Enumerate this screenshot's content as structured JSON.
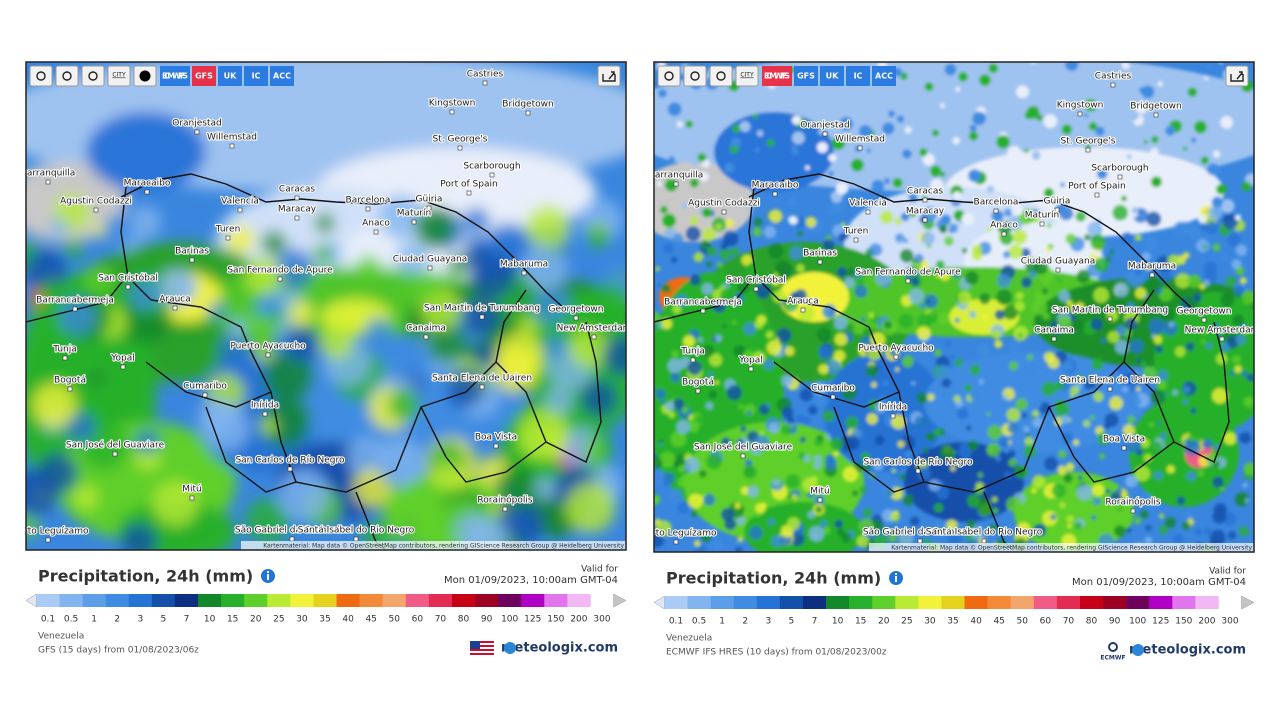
{
  "map_cities": [
    "Castries",
    "Kingstown",
    "Bridgetown",
    "Oranjestad",
    "Willemstad",
    "St. George's",
    "Scarborough",
    "Barranquilla",
    "Maracaibo",
    "Caracas",
    "Port of Spain",
    "Agustin Codazzi",
    "Valencia",
    "Barcelona",
    "Güiria",
    "Maracay",
    "Maturín",
    "Anaco",
    "Turen",
    "Barinas",
    "Ciudad Guayana",
    "Mabaruma",
    "San Fernando de Apure",
    "San Cristóbal",
    "Arauca",
    "Barrancabermeja",
    "San Martin de Turumbang",
    "Georgetown",
    "Canaima",
    "New Amsterdam",
    "Puerto Ayacucho",
    "Tunja",
    "Yopal",
    "Bogotá",
    "Cumaribo",
    "Santa Elena de Uairen",
    "Inírida",
    "Boa Vista",
    "San José del Guaviare",
    "San Carlos de Río Negro",
    "Mitú",
    "Rorainópolis",
    "São Gabriel da Cachoeira",
    "Santa Isabel do Rio Negro",
    "Puerto Leguízamo"
  ],
  "attribution": "Kartenmaterial: Map data © OpenStreetMap contributors, rendering GIScience Research Group @ Heidelberg University",
  "toolbar": {
    "city": "CITY",
    "models": [
      "ECMWF IFS",
      "GFS",
      "UK",
      "IC",
      "ACC"
    ]
  },
  "legend": {
    "labels": [
      0.1,
      0.5,
      1,
      2,
      3,
      5,
      7,
      10,
      15,
      20,
      25,
      30,
      35,
      40,
      45,
      50,
      60,
      70,
      80,
      90,
      100,
      125,
      150,
      200,
      300
    ],
    "colors": [
      "#dfe7f4",
      "#a9cbf4",
      "#82b5f0",
      "#5c9fe8",
      "#3f8ce2",
      "#2573d4",
      "#1350aa",
      "#0c2f80",
      "#14872a",
      "#27b02c",
      "#5fcf2c",
      "#b9ea34",
      "#f2f23a",
      "#e4d21c",
      "#f06a12",
      "#f28a3a",
      "#f3a66c",
      "#f05c86",
      "#e42c52",
      "#c60016",
      "#9c0022",
      "#6e005e",
      "#b000c6",
      "#e274ee",
      "#f1b8f4",
      "#c4c4c4"
    ]
  },
  "panels": [
    {
      "active_model": 1,
      "title": "Precipitation, 24h (mm)",
      "valid_for": "Valid for",
      "valid_time": "Mon 01/09/2023, 10:00am GMT-04",
      "region": "Venezuela",
      "model_run": "GFS (15 days) from 01/08/2023/06z",
      "logo": "meteologix.com"
    },
    {
      "active_model": 0,
      "title": "Precipitation, 24h (mm)",
      "valid_for": "Valid for",
      "valid_time": "Mon 01/09/2023, 10:00am GMT-04",
      "region": "Venezuela",
      "model_run": "ECMWF IFS HRES (10 days) from 01/08/2023/00z",
      "logo": "meteologix.com",
      "model_logo": "ECMWF"
    }
  ]
}
